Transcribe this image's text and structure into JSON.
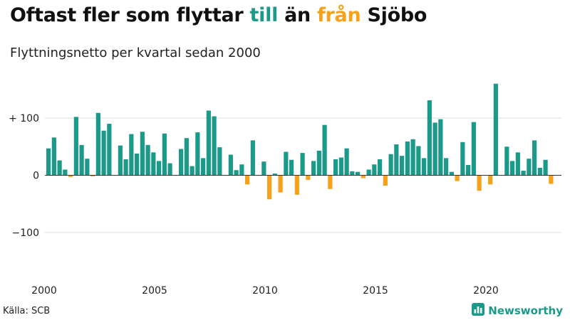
{
  "title": {
    "part1": "Oftast fler som flyttar ",
    "part2": "till",
    "part3": " än ",
    "part4": "från",
    "part5": " Sjöbo"
  },
  "subtitle": "Flyttningsnetto per kvartal sedan 2000",
  "source": "Källa: SCB",
  "brand": "Newsworthy",
  "colors": {
    "positive": "#1b9a8a",
    "negative": "#f5a11a",
    "grid": "#dddddd",
    "zero": "#333333"
  },
  "chart_data": {
    "type": "bar",
    "title": "",
    "xlabel": "",
    "ylabel": "",
    "ylim": [
      -170,
      170
    ],
    "yticks": [
      {
        "value": 100,
        "label": "+ 100"
      },
      {
        "value": 0,
        "label": "0"
      },
      {
        "value": -100,
        "label": "−100"
      }
    ],
    "xticks": [
      {
        "year": 2000,
        "label": "2000"
      },
      {
        "year": 2005,
        "label": "2005"
      },
      {
        "year": 2010,
        "label": "2010"
      },
      {
        "year": 2015,
        "label": "2015"
      },
      {
        "year": 2020,
        "label": "2020"
      }
    ],
    "start": "2000K1",
    "grid": true,
    "values": [
      47,
      66,
      26,
      10,
      -3,
      102,
      53,
      29,
      -2,
      109,
      78,
      90,
      0,
      52,
      28,
      72,
      38,
      76,
      53,
      40,
      25,
      73,
      21,
      0,
      46,
      65,
      16,
      75,
      30,
      113,
      103,
      49,
      0,
      36,
      9,
      19,
      -16,
      61,
      0,
      24,
      -42,
      3,
      -30,
      41,
      27,
      -34,
      39,
      -8,
      25,
      43,
      88,
      -24,
      28,
      31,
      47,
      7,
      6,
      -5,
      10,
      19,
      28,
      -18,
      37,
      54,
      34,
      59,
      63,
      51,
      30,
      131,
      92,
      98,
      30,
      6,
      -10,
      58,
      18,
      93,
      -27,
      0,
      -16,
      160,
      0,
      50,
      25,
      40,
      8,
      29,
      61,
      13,
      27,
      -15
    ]
  }
}
